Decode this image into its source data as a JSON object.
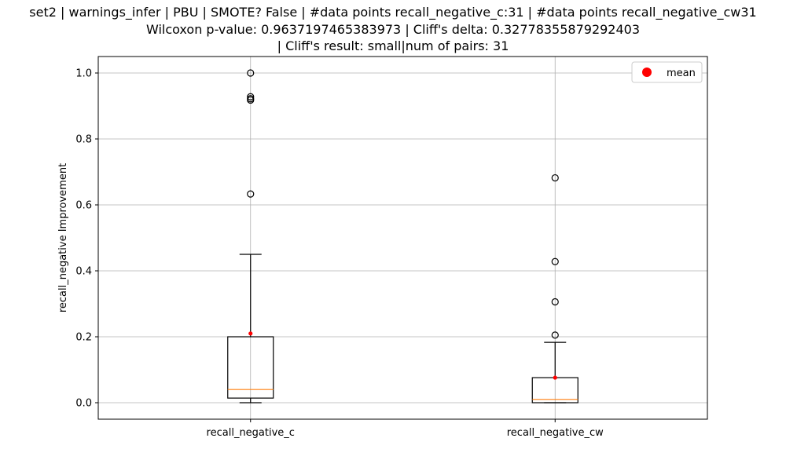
{
  "chart_data": {
    "type": "box",
    "title_lines": [
      "set2 | warnings_infer | PBU | SMOTE? False | #data points recall_negative_c:31 | #data points recall_negative_cw31",
      "Wilcoxon p-value: 0.9637197465383973 | Cliff's delta: 0.32778355879292403",
      " | Cliff's result: small|num of pairs: 31"
    ],
    "xlabel": "",
    "ylabel": "recall_negative Improvement",
    "ylim": [
      -0.05,
      1.05
    ],
    "yticks": [
      0.0,
      0.2,
      0.4,
      0.6,
      0.8,
      1.0
    ],
    "ytick_labels": [
      "0.0",
      "0.2",
      "0.4",
      "0.6",
      "0.8",
      "1.0"
    ],
    "grid": true,
    "legend": {
      "position": "top-right",
      "entries": [
        {
          "label": "mean",
          "color": "#ff0000",
          "marker": "circle"
        }
      ]
    },
    "categories": [
      "recall_negative_c",
      "recall_negative_cw"
    ],
    "boxes": [
      {
        "name": "recall_negative_c",
        "whisker_low": 0.0,
        "q1": 0.014,
        "median": 0.04,
        "q3": 0.2,
        "whisker_high": 0.45,
        "mean": 0.21,
        "outliers": [
          0.633,
          0.918,
          0.922,
          0.928,
          1.0
        ]
      },
      {
        "name": "recall_negative_cw",
        "whisker_low": 0.0,
        "q1": 0.0,
        "median": 0.01,
        "q3": 0.076,
        "whisker_high": 0.183,
        "mean": 0.076,
        "outliers": [
          0.205,
          0.306,
          0.428,
          0.682
        ]
      }
    ],
    "colors": {
      "box": "#000000",
      "median": "#ff7f0e",
      "mean": "#ff0000",
      "grid": "#b0b0b0"
    }
  }
}
